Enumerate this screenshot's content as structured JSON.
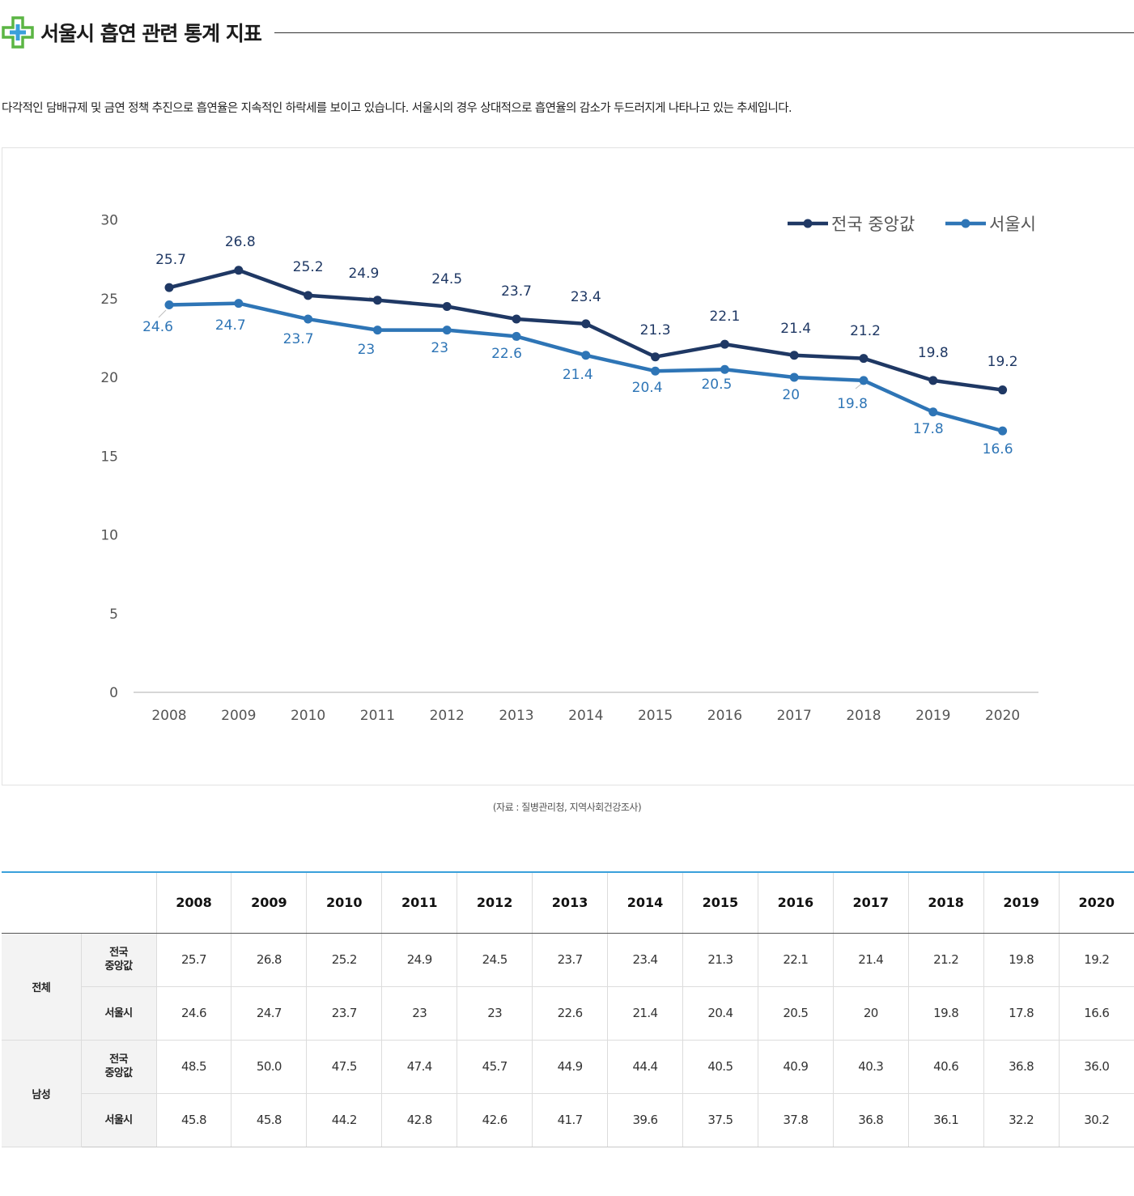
{
  "page": {
    "title": "서울시 흡연 관련 통계 지표",
    "description": "다각적인 담배규제 및 금연 정책 추진으로 흡연율은 지속적인 하락세를 보이고 있습니다. 서울시의 경우 상대적으로 흡연율의 감소가 두드러지게 나타나고 있는 추세입니다.",
    "source": "(자료 : 질병관리청, 지역사회건강조사)"
  },
  "colors": {
    "national": "#1f3864",
    "seoul": "#2e75b6",
    "accent": "#3aa0db",
    "icon_green": "#5bb544",
    "icon_blue": "#3aa0db"
  },
  "icons": {
    "title": "medical-cross-icon"
  },
  "chart_data": {
    "type": "line",
    "title": "",
    "xlabel": "",
    "ylabel": "",
    "x": [
      "2008",
      "2009",
      "2010",
      "2011",
      "2012",
      "2013",
      "2014",
      "2015",
      "2016",
      "2017",
      "2018",
      "2019",
      "2020"
    ],
    "ylim": [
      0,
      30
    ],
    "yticks": [
      0,
      5,
      10,
      15,
      20,
      25,
      30
    ],
    "grid": false,
    "legend": "top-right",
    "series": [
      {
        "name": "전국 중앙값",
        "color": "#1f3864",
        "values": [
          25.7,
          26.8,
          25.2,
          24.9,
          24.5,
          23.7,
          23.4,
          21.3,
          22.1,
          21.4,
          21.2,
          19.8,
          19.2
        ]
      },
      {
        "name": "서울시",
        "color": "#2e75b6",
        "values": [
          24.6,
          24.7,
          23.7,
          23,
          23,
          22.6,
          21.4,
          20.4,
          20.5,
          20,
          19.8,
          17.8,
          16.6
        ]
      }
    ]
  },
  "table": {
    "years": [
      "2008",
      "2009",
      "2010",
      "2011",
      "2012",
      "2013",
      "2014",
      "2015",
      "2016",
      "2017",
      "2018",
      "2019",
      "2020"
    ],
    "groups": [
      {
        "name": "전체",
        "rows": [
          {
            "label": "전국\n중앙값",
            "values": [
              "25.7",
              "26.8",
              "25.2",
              "24.9",
              "24.5",
              "23.7",
              "23.4",
              "21.3",
              "22.1",
              "21.4",
              "21.2",
              "19.8",
              "19.2"
            ]
          },
          {
            "label": "서울시",
            "values": [
              "24.6",
              "24.7",
              "23.7",
              "23",
              "23",
              "22.6",
              "21.4",
              "20.4",
              "20.5",
              "20",
              "19.8",
              "17.8",
              "16.6"
            ]
          }
        ]
      },
      {
        "name": "남성",
        "rows": [
          {
            "label": "전국\n중앙값",
            "values": [
              "48.5",
              "50.0",
              "47.5",
              "47.4",
              "45.7",
              "44.9",
              "44.4",
              "40.5",
              "40.9",
              "40.3",
              "40.6",
              "36.8",
              "36.0"
            ]
          },
          {
            "label": "서울시",
            "values": [
              "45.8",
              "45.8",
              "44.2",
              "42.8",
              "42.6",
              "41.7",
              "39.6",
              "37.5",
              "37.8",
              "36.8",
              "36.1",
              "32.2",
              "30.2"
            ]
          }
        ]
      }
    ]
  }
}
